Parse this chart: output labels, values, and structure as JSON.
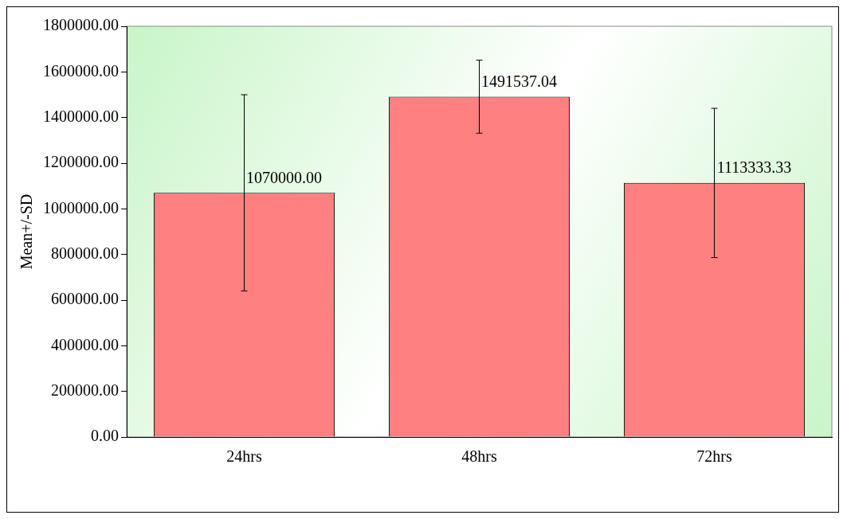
{
  "chart_data": {
    "type": "bar",
    "ylabel": "Mean+/-SD",
    "categories": [
      "24hrs",
      "48hrs",
      "72hrs"
    ],
    "values": [
      1070000.0,
      1491537.04,
      1113333.33
    ],
    "errors": [
      430000,
      160000,
      327000
    ],
    "value_labels": [
      "1070000.00",
      "1491537.04",
      "1113333.33"
    ],
    "color": "#ff8080",
    "ylim": [
      0,
      1800000
    ],
    "yticks": [
      {
        "value": 0,
        "label": "0.00"
      },
      {
        "value": 200000,
        "label": "200000.00"
      },
      {
        "value": 400000,
        "label": "400000.00"
      },
      {
        "value": 600000,
        "label": "600000.00"
      },
      {
        "value": 800000,
        "label": "800000.00"
      },
      {
        "value": 1000000,
        "label": "1000000.00"
      },
      {
        "value": 1200000,
        "label": "1200000.00"
      },
      {
        "value": 1400000,
        "label": "1400000.00"
      },
      {
        "value": 1600000,
        "label": "1600000.00"
      },
      {
        "value": 1800000,
        "label": "1800000.00"
      }
    ],
    "grid": false,
    "legend": false
  }
}
